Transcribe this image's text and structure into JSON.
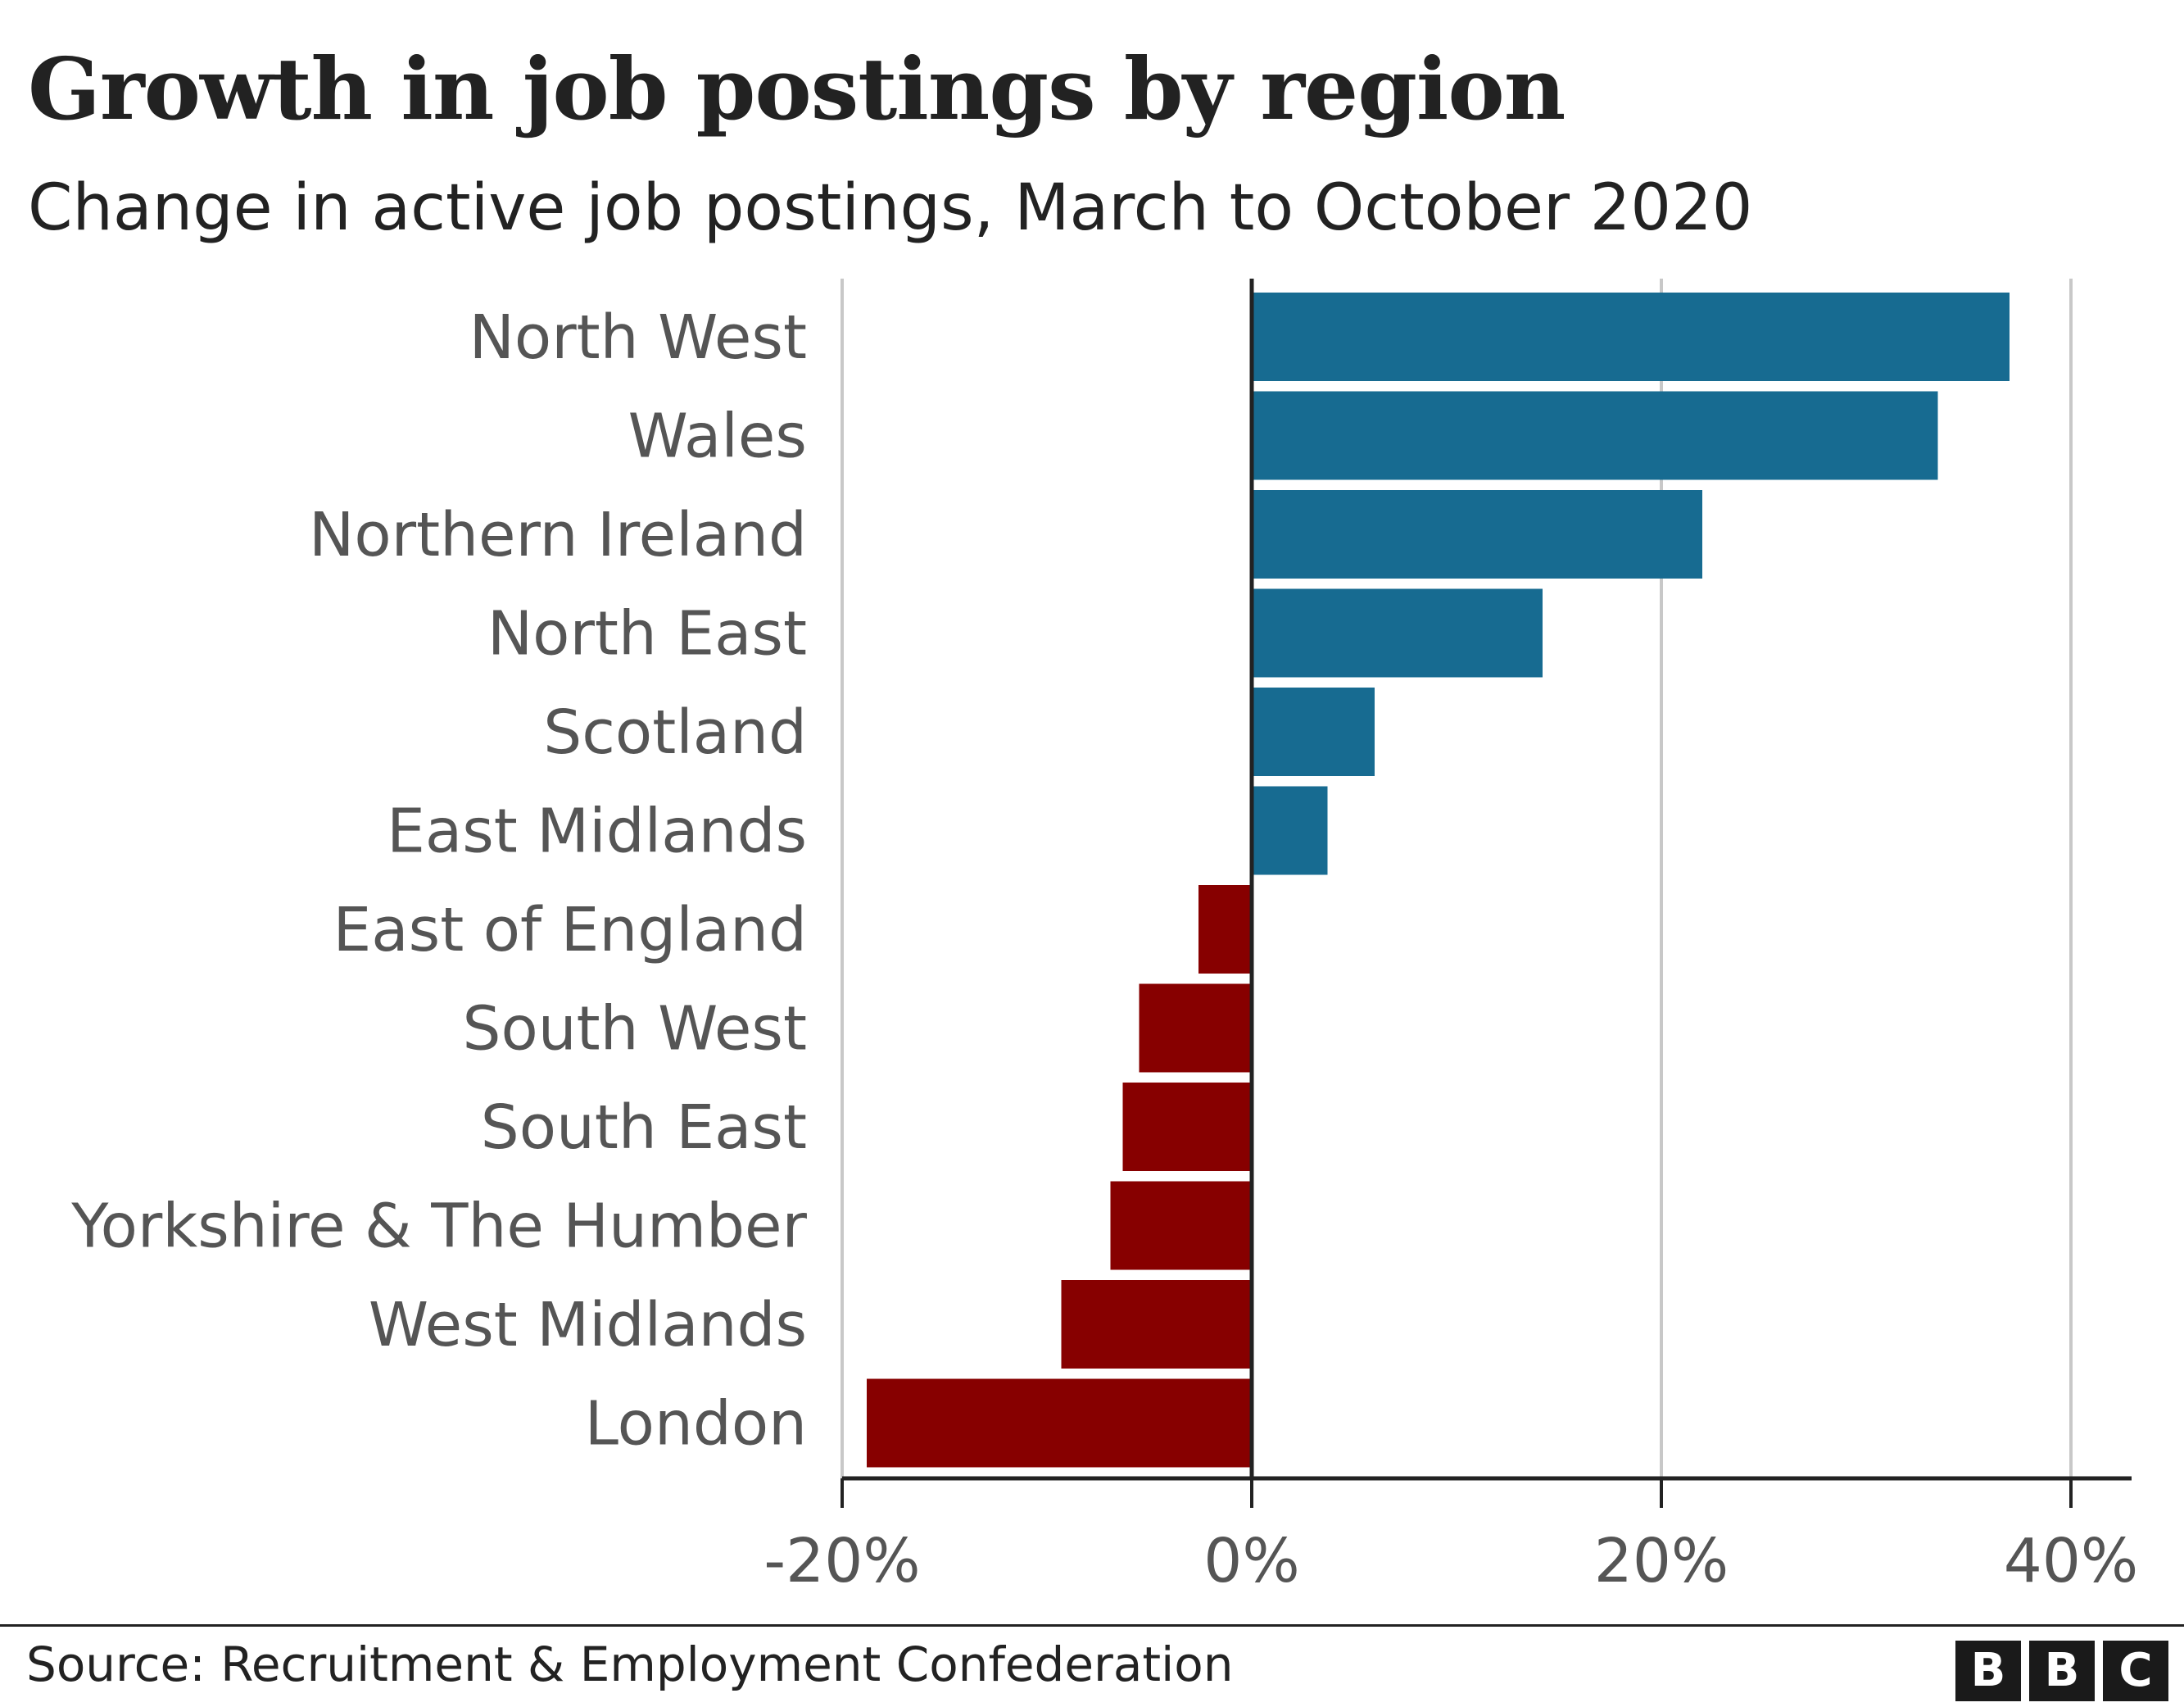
{
  "title": "Growth in job postings by region",
  "subtitle": "Change in active job postings, March to October 2020",
  "source": "Source: Recruitment & Employment Confederation",
  "logo": [
    "B",
    "B",
    "C"
  ],
  "colors": {
    "positive": "#176b91",
    "negative": "#870000",
    "grid": "#c8c8c8",
    "axis": "#222222",
    "label": "#555555"
  },
  "chart_data": {
    "type": "bar",
    "orientation": "horizontal",
    "categories": [
      "North West",
      "Wales",
      "Northern Ireland",
      "North East",
      "Scotland",
      "East Midlands",
      "East of England",
      "South West",
      "South East",
      "Yorkshire & The Humber",
      "West Midlands",
      "London"
    ],
    "values": [
      37,
      33.5,
      22,
      14.2,
      6,
      3.7,
      -2.6,
      -5.5,
      -6.3,
      -6.9,
      -9.3,
      -18.8
    ],
    "xlim": [
      -20,
      43
    ],
    "xticks": [
      -20,
      0,
      20,
      40
    ],
    "xtick_labels": [
      "-20%",
      "0%",
      "20%",
      "40%"
    ],
    "grid": true
  }
}
